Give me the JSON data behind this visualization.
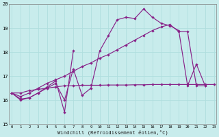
{
  "xlabel": "Windchill (Refroidissement éolien,°C)",
  "background_color": "#c8ecec",
  "grid_color": "#b0dede",
  "line_color": "#882288",
  "x_all": [
    0,
    1,
    2,
    3,
    4,
    5,
    6,
    7,
    8,
    9,
    10,
    11,
    12,
    13,
    14,
    15,
    16,
    17,
    18,
    19,
    20,
    21,
    22,
    23
  ],
  "series1_x": [
    0,
    1,
    2,
    3,
    4,
    5,
    6,
    7,
    8,
    9,
    10,
    11,
    12,
    13,
    14,
    15,
    16,
    17,
    18,
    19,
    20,
    21,
    22
  ],
  "series1_y": [
    16.3,
    16.0,
    16.1,
    16.3,
    16.5,
    16.7,
    16.0,
    17.3,
    16.2,
    16.5,
    18.05,
    18.7,
    19.35,
    19.45,
    19.4,
    19.8,
    19.45,
    19.2,
    19.1,
    18.9,
    16.6,
    17.5,
    16.6
  ],
  "series2_x": [
    0,
    1,
    2,
    3,
    4,
    5,
    6,
    7
  ],
  "series2_y": [
    16.3,
    16.05,
    16.1,
    16.3,
    16.55,
    16.8,
    15.5,
    18.05
  ],
  "series3_x": [
    0,
    1,
    2,
    3,
    4,
    5,
    6,
    7,
    8,
    9,
    10,
    11,
    12,
    13,
    14,
    15,
    16,
    17,
    18,
    19,
    20,
    21,
    22,
    23
  ],
  "series3_y": [
    16.3,
    16.3,
    16.4,
    16.45,
    16.5,
    16.55,
    16.6,
    16.6,
    16.62,
    16.62,
    16.62,
    16.63,
    16.63,
    16.63,
    16.64,
    16.64,
    16.65,
    16.65,
    16.65,
    16.65,
    16.65,
    16.65,
    16.65,
    16.65
  ],
  "series4_x": [
    0,
    1,
    2,
    3,
    4,
    5,
    6,
    7,
    8,
    9,
    10,
    11,
    12,
    13,
    14,
    15,
    16,
    17,
    18,
    19,
    20,
    21,
    22
  ],
  "series4_y": [
    16.3,
    16.15,
    16.3,
    16.5,
    16.7,
    16.85,
    17.0,
    17.2,
    17.4,
    17.55,
    17.75,
    17.9,
    18.1,
    18.3,
    18.5,
    18.7,
    18.9,
    19.05,
    19.15,
    18.85,
    18.85,
    16.6,
    16.6
  ],
  "ylim": [
    15,
    20
  ],
  "xlim": [
    -0.3,
    23.3
  ],
  "yticks": [
    15,
    16,
    17,
    18,
    19,
    20
  ],
  "xticks": [
    0,
    1,
    2,
    3,
    4,
    5,
    6,
    7,
    8,
    9,
    10,
    11,
    12,
    13,
    14,
    15,
    16,
    17,
    18,
    19,
    20,
    21,
    22,
    23
  ]
}
